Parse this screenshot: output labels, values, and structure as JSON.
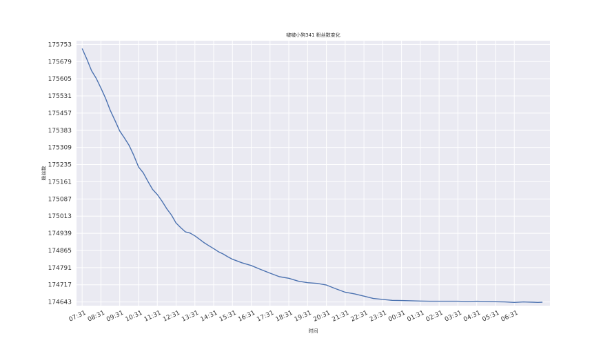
{
  "chart_data": {
    "type": "line",
    "title": "啵啵小狗341 粉丝数变化",
    "xlabel": "时间",
    "ylabel": "粉丝数",
    "x_ticks": [
      "07:31",
      "08:31",
      "09:31",
      "10:31",
      "11:31",
      "12:31",
      "13:31",
      "14:31",
      "15:31",
      "16:31",
      "17:31",
      "18:31",
      "19:31",
      "20:31",
      "21:31",
      "22:31",
      "23:31",
      "00:31",
      "01:31",
      "02:31",
      "03:31",
      "04:31",
      "05:31",
      "06:31"
    ],
    "y_ticks": [
      174643,
      174717,
      174791,
      174865,
      174939,
      175013,
      175087,
      175161,
      175235,
      175309,
      175383,
      175457,
      175531,
      175605,
      175679,
      175753
    ],
    "xlim": [
      -0.3,
      24.9
    ],
    "ylim": [
      174627,
      175769
    ],
    "grid": true,
    "series": [
      {
        "x": [
          0,
          0.25,
          0.5,
          0.75,
          1,
          1.25,
          1.5,
          1.75,
          2,
          2.25,
          2.5,
          2.75,
          3,
          3.25,
          3.5,
          3.75,
          4,
          4.25,
          4.5,
          4.75,
          5,
          5.25,
          5.5,
          5.75,
          6,
          6.25,
          6.5,
          6.75,
          7,
          7.25,
          7.5,
          7.75,
          8,
          8.5,
          9,
          9.5,
          10,
          10.5,
          11,
          11.5,
          12,
          12.5,
          13,
          13.5,
          14,
          14.5,
          15,
          15.5,
          16,
          16.5,
          17,
          17.5,
          18,
          18.5,
          19,
          19.5,
          20,
          20.5,
          21,
          21.5,
          22,
          22.5,
          23,
          23.5,
          24,
          24.25,
          24.5
        ],
        "y": [
          175735,
          175690,
          175640,
          175607,
          175565,
          175520,
          175468,
          175425,
          175380,
          175350,
          175318,
          175275,
          175225,
          175200,
          175163,
          175128,
          175106,
          175078,
          175045,
          175018,
          174983,
          174963,
          174945,
          174940,
          174928,
          174913,
          174898,
          174885,
          174873,
          174860,
          174850,
          174838,
          174827,
          174812,
          174800,
          174783,
          174767,
          174752,
          174745,
          174733,
          174726,
          174723,
          174716,
          174700,
          174685,
          174678,
          174668,
          174658,
          174654,
          174650,
          174649,
          174648,
          174647,
          174646,
          174646,
          174646,
          174646,
          174645,
          174646,
          174645,
          174644,
          174643,
          174641,
          174643,
          174642,
          174641,
          174642
        ],
        "color": "#4c72b0"
      }
    ]
  }
}
